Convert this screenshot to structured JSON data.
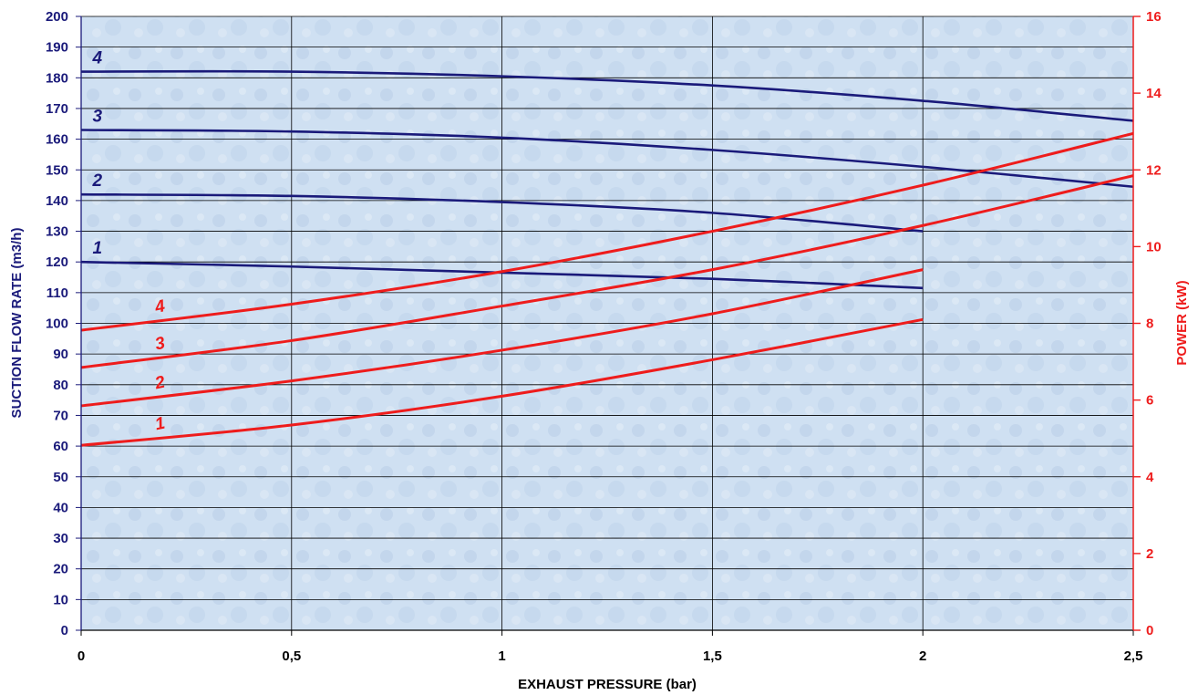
{
  "chart_data": {
    "type": "line",
    "xlabel": "EXHAUST PRESSURE (bar)",
    "ylabel": "SUCTION FLOW RATE (m3/h)",
    "y2label": "POWER (kW)",
    "xlim": [
      0,
      2.5
    ],
    "ylim": [
      0,
      200
    ],
    "y2lim": [
      0,
      16
    ],
    "x_ticks": [
      "0",
      "0,5",
      "1",
      "1,5",
      "2",
      "2,5"
    ],
    "y_ticks": [
      "0",
      "10",
      "20",
      "30",
      "40",
      "50",
      "60",
      "70",
      "80",
      "90",
      "100",
      "110",
      "120",
      "130",
      "140",
      "150",
      "160",
      "170",
      "180",
      "190",
      "200"
    ],
    "y2_ticks": [
      "0",
      "2",
      "4",
      "6",
      "8",
      "10",
      "12",
      "14",
      "16"
    ],
    "grid": true,
    "colors": {
      "flow": "#1a1a7a",
      "power": "#ee1c1c",
      "axis_left": "#1a1a7a",
      "axis_right": "#ee1c1c",
      "plot_bg": "#cfe0f2"
    },
    "series": [
      {
        "name": "1",
        "axis": "left",
        "kind": "flow",
        "x": [
          0,
          0.5,
          1.0,
          1.5,
          2.0
        ],
        "values": [
          120,
          118.5,
          116.5,
          114.5,
          111.5
        ]
      },
      {
        "name": "2",
        "axis": "left",
        "kind": "flow",
        "x": [
          0,
          0.5,
          1.0,
          1.5,
          2.0
        ],
        "values": [
          142,
          141.5,
          139.5,
          136,
          130
        ]
      },
      {
        "name": "3",
        "axis": "left",
        "kind": "flow",
        "x": [
          0,
          0.5,
          1.0,
          1.5,
          2.0,
          2.5
        ],
        "values": [
          163,
          162.5,
          160.5,
          156.5,
          151,
          144.5
        ]
      },
      {
        "name": "4",
        "axis": "left",
        "kind": "flow",
        "x": [
          0,
          0.5,
          1.0,
          1.5,
          2.0,
          2.5
        ],
        "values": [
          182,
          182,
          180.5,
          177.5,
          172.5,
          166
        ]
      },
      {
        "name": "1",
        "axis": "right",
        "kind": "power",
        "x": [
          0,
          0.5,
          1.0,
          1.5,
          2.0
        ],
        "values": [
          4.82,
          5.35,
          6.1,
          7.05,
          8.1
        ]
      },
      {
        "name": "2",
        "axis": "right",
        "kind": "power",
        "x": [
          0,
          0.5,
          1.0,
          1.5,
          2.0
        ],
        "values": [
          5.85,
          6.5,
          7.3,
          8.25,
          9.4
        ]
      },
      {
        "name": "3",
        "axis": "right",
        "kind": "power",
        "x": [
          0,
          0.5,
          1.0,
          1.5,
          2.0,
          2.5
        ],
        "values": [
          6.85,
          7.55,
          8.45,
          9.4,
          10.55,
          11.85
        ]
      },
      {
        "name": "4",
        "axis": "right",
        "kind": "power",
        "x": [
          0,
          0.5,
          1.0,
          1.5,
          2.0,
          2.5
        ],
        "values": [
          7.82,
          8.5,
          9.35,
          10.4,
          11.6,
          12.95
        ]
      }
    ]
  }
}
